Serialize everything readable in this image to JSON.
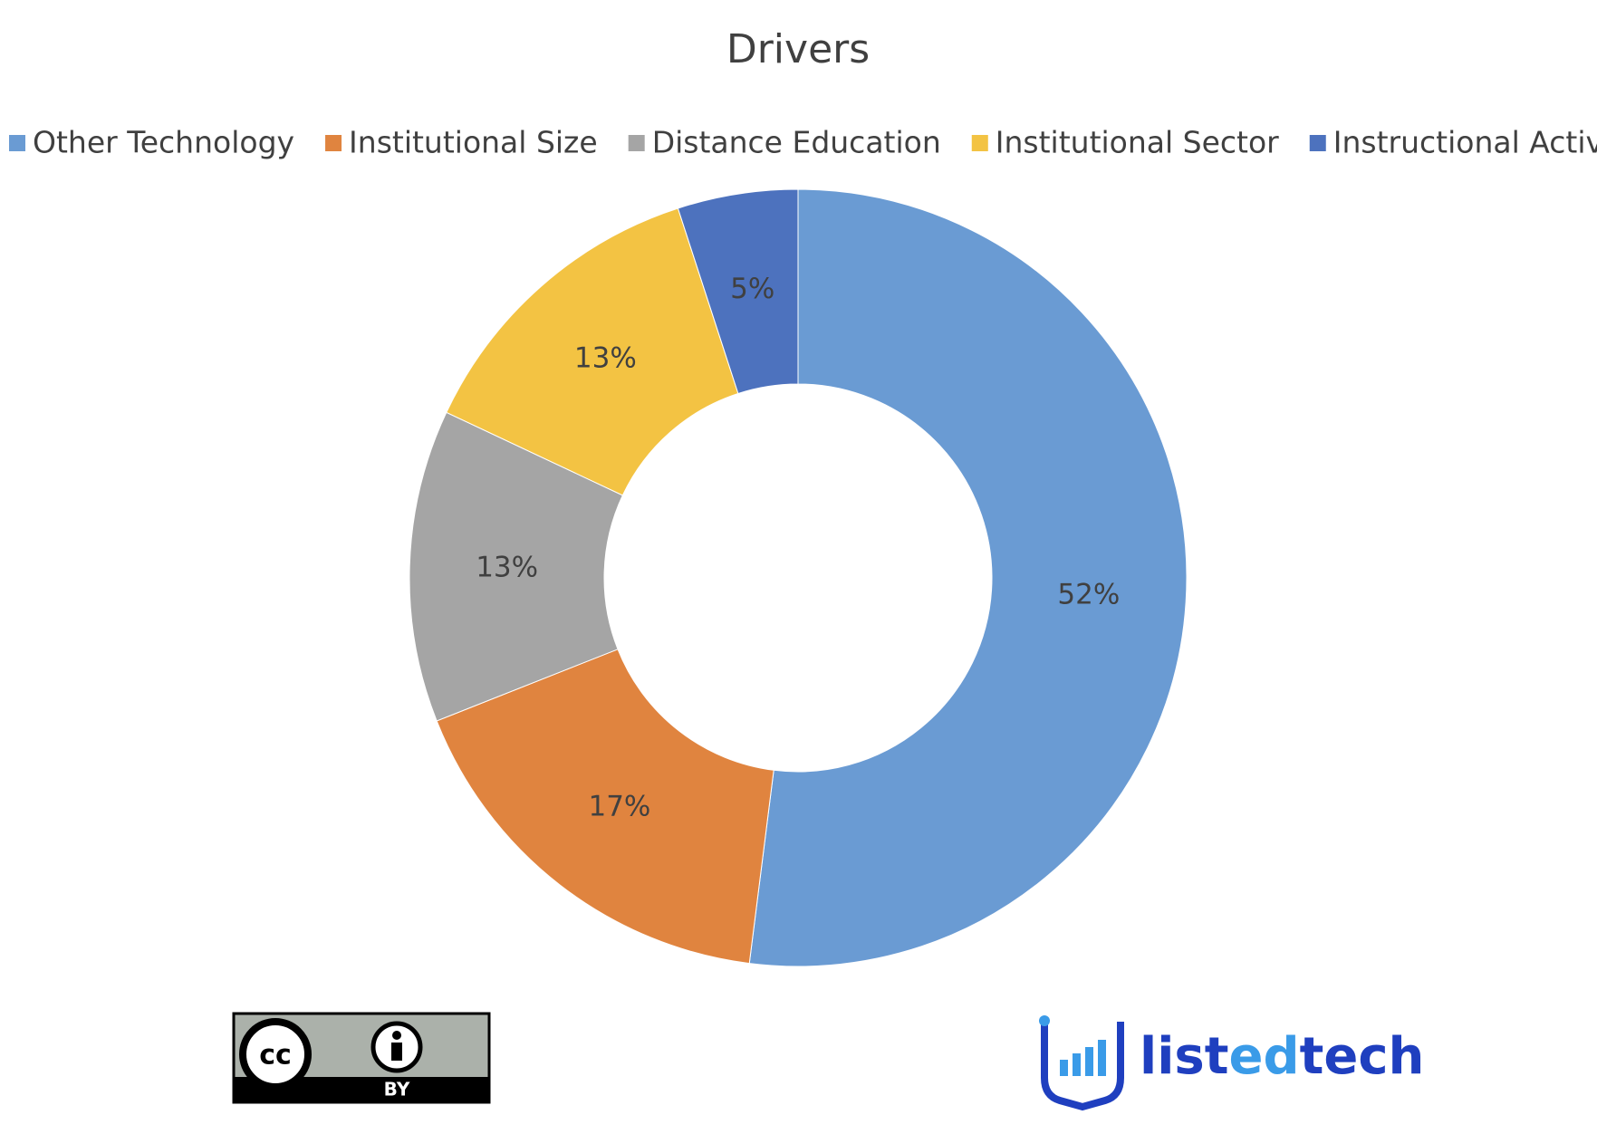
{
  "chart_data": {
    "type": "donut",
    "title": "Drivers",
    "categories": [
      "Other Technology",
      "Institutional Size",
      "Distance Education",
      "Institutional Sector",
      "Instructional Activity"
    ],
    "values": [
      52,
      17,
      13,
      13,
      5
    ],
    "value_labels": [
      "52%",
      "17%",
      "13%",
      "13%",
      "5%"
    ],
    "colors": [
      "#6a9bd3",
      "#e0843f",
      "#a5a5a5",
      "#f3c343",
      "#4d72be"
    ],
    "legend": "top"
  },
  "license": {
    "icon": "cc",
    "label": "BY"
  },
  "brand": {
    "name_parts": [
      "list",
      "ed",
      "tech"
    ]
  }
}
